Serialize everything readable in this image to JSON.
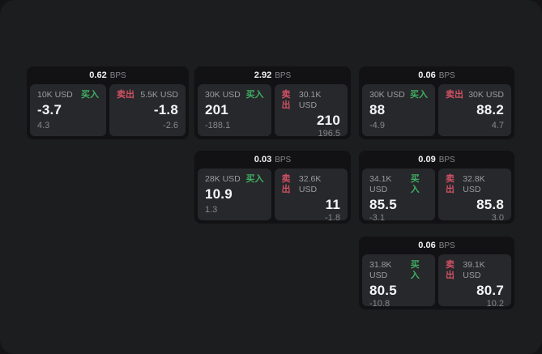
{
  "labels": {
    "bps_suffix": "BPS",
    "buy": "买入",
    "sell": "卖出"
  },
  "colors": {
    "buy": "#3fae62",
    "sell": "#cf5163",
    "surface": "#1c1d1f",
    "card": "#121214",
    "panel": "#27282b"
  },
  "cards": [
    {
      "bps": "0.62",
      "buy": {
        "size": "10K USD",
        "price": "-3.7",
        "delta": "4.3"
      },
      "sell": {
        "size": "5.5K USD",
        "price": "-1.8",
        "delta": "-2.6"
      }
    },
    {
      "bps": "2.92",
      "buy": {
        "size": "30K USD",
        "price": "201",
        "delta": "-188.1"
      },
      "sell": {
        "size": "30.1K USD",
        "price": "210",
        "delta": "196.5"
      }
    },
    {
      "bps": "0.06",
      "buy": {
        "size": "30K USD",
        "price": "88",
        "delta": "-4.9"
      },
      "sell": {
        "size": "30K USD",
        "price": "88.2",
        "delta": "4.7"
      }
    },
    {
      "bps": "0.03",
      "buy": {
        "size": "28K USD",
        "price": "10.9",
        "delta": "1.3"
      },
      "sell": {
        "size": "32.6K USD",
        "price": "11",
        "delta": "-1.8"
      }
    },
    {
      "bps": "0.09",
      "buy": {
        "size": "34.1K USD",
        "price": "85.5",
        "delta": "-3.1"
      },
      "sell": {
        "size": "32.8K USD",
        "price": "85.8",
        "delta": "3.0"
      }
    },
    {
      "bps": "0.06",
      "buy": {
        "size": "31.8K USD",
        "price": "80.5",
        "delta": "-10.8"
      },
      "sell": {
        "size": "39.1K USD",
        "price": "80.7",
        "delta": "10.2"
      }
    }
  ]
}
